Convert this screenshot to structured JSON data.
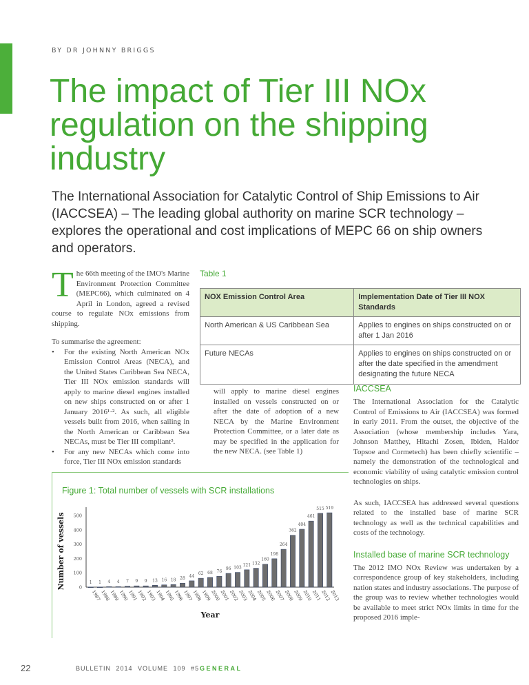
{
  "byline": "BY DR JOHNNY BRIGGS",
  "title": "The impact of Tier III NOx regulation on the shipping industry",
  "subtitle": "The International Association for Catalytic Control of Ship Emissions to Air (IACCSEA) – The leading global authority on marine SCR technology – explores the operational and cost implications of MEPC 66 on ship owners and operators.",
  "col1": {
    "dropcap": "T",
    "intro": "he 66th meeting of the IMO's Marine Environment Protection Committee (MEPC66), which culminated on 4 April in London, agreed a revised course to regulate NOx emissions from shipping.",
    "summary_lead": "To summarise the agreement:",
    "bullets": [
      "For the existing North American NOx Emission Control Areas (NECA), and the United States Caribbean Sea NECA, Tier III NOx emission standards will apply to marine diesel engines installed on new ships constructed on or after 1 January 2016¹·². As such, all eligible vessels built from 2016, when sailing in the North American or Caribbean Sea NECAs, must be Tier III compliant³.",
      "For any new NECAs which come into force, Tier III NOx emission standards"
    ]
  },
  "table": {
    "label": "Table 1",
    "headers": [
      "NOX Emission Control Area",
      "Implementation Date of Tier III NOX Standards"
    ],
    "rows": [
      [
        "North American & US Caribbean Sea",
        "Applies to engines on ships constructed on or after 1 Jan 2016"
      ],
      [
        "Future NECAs",
        "Applies to engines on ships constructed on or after the date specified in the amendment designating the future NECA"
      ]
    ]
  },
  "col2": "will apply to marine diesel engines installed on vessels constructed on or after the date of adoption of a new NECA by the Marine Environment Protection Committee, or a later date as may be specified in the application for the new NECA. (see Table 1)",
  "col3": {
    "heading1": "IACCSEA",
    "para1": "The International Association for the Catalytic Control of Emissions to Air (IACCSEA) was formed in early 2011. From the outset, the objective of the Association (whose membership includes Yara, Johnson Matthey, Hitachi Zosen, Ibiden, Haldor Topsoe and Cormetech) has been chiefly scientific – namely the demonstration of the technological and economic viability of using catalytic emission control technologies on ships.",
    "para2": "As such, IACCSEA has addressed several questions related to the installed base of marine SCR technology as well as the technical capabilities and costs of the technology.",
    "heading2": "Installed base of marine SCR technology",
    "para3": "The 2012 IMO NOx Review was undertaken by a correspondence group of key stakeholders, including nation states and industry associations. The purpose of the group was to review whether technologies would be available to meet strict NOx limits in time for the proposed 2016 imple-"
  },
  "figure": {
    "title": "Figure 1: Total number of vessels with SCR installations"
  },
  "chart_data": {
    "type": "bar",
    "title": "Figure 1: Total number of vessels with SCR installations",
    "xlabel": "Year",
    "ylabel": "Number of vessels",
    "categories": [
      "1987",
      "1988",
      "1989",
      "1990",
      "1991",
      "1992",
      "1993",
      "1994",
      "1995",
      "1996",
      "1997",
      "1998",
      "1999",
      "2000",
      "2001",
      "2002",
      "2003",
      "2004",
      "2005",
      "2006",
      "2007",
      "2008",
      "2009",
      "2010",
      "2011",
      "2012",
      "2013"
    ],
    "values": [
      1,
      1,
      4,
      4,
      7,
      9,
      9,
      13,
      16,
      18,
      28,
      44,
      62,
      68,
      76,
      96,
      103,
      121,
      132,
      160,
      198,
      264,
      362,
      404,
      461,
      515,
      519
    ],
    "ylim": [
      0,
      500
    ],
    "yticks": [
      0,
      100,
      200,
      300,
      400,
      500
    ],
    "grid": false,
    "bar_color": "#6d6d6d"
  },
  "footer": {
    "page": "22",
    "bulletin": "BULLETIN 2014  VOLUME 109  #5",
    "section": "GENERAL"
  },
  "colors": {
    "accent": "#45a935"
  }
}
